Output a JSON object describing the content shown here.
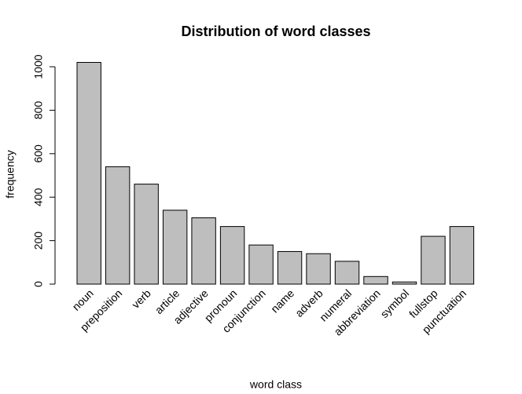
{
  "chart_data": {
    "type": "bar",
    "title": "Distribution of word classes",
    "x_label": "word class",
    "y_label": "frequency",
    "categories": [
      "noun",
      "preposition",
      "verb",
      "article",
      "adjective",
      "pronoun",
      "conjunction",
      "name",
      "adverb",
      "numeral",
      "abbreviation",
      "symbol",
      "fullstop",
      "punctuation"
    ],
    "values": [
      1020,
      540,
      460,
      340,
      305,
      265,
      180,
      150,
      140,
      105,
      35,
      10,
      220,
      265
    ],
    "color": "#bebebe",
    "ylim": [
      0,
      1020
    ],
    "yticks": [
      0,
      200,
      400,
      600,
      800,
      1000
    ],
    "grid": false
  }
}
